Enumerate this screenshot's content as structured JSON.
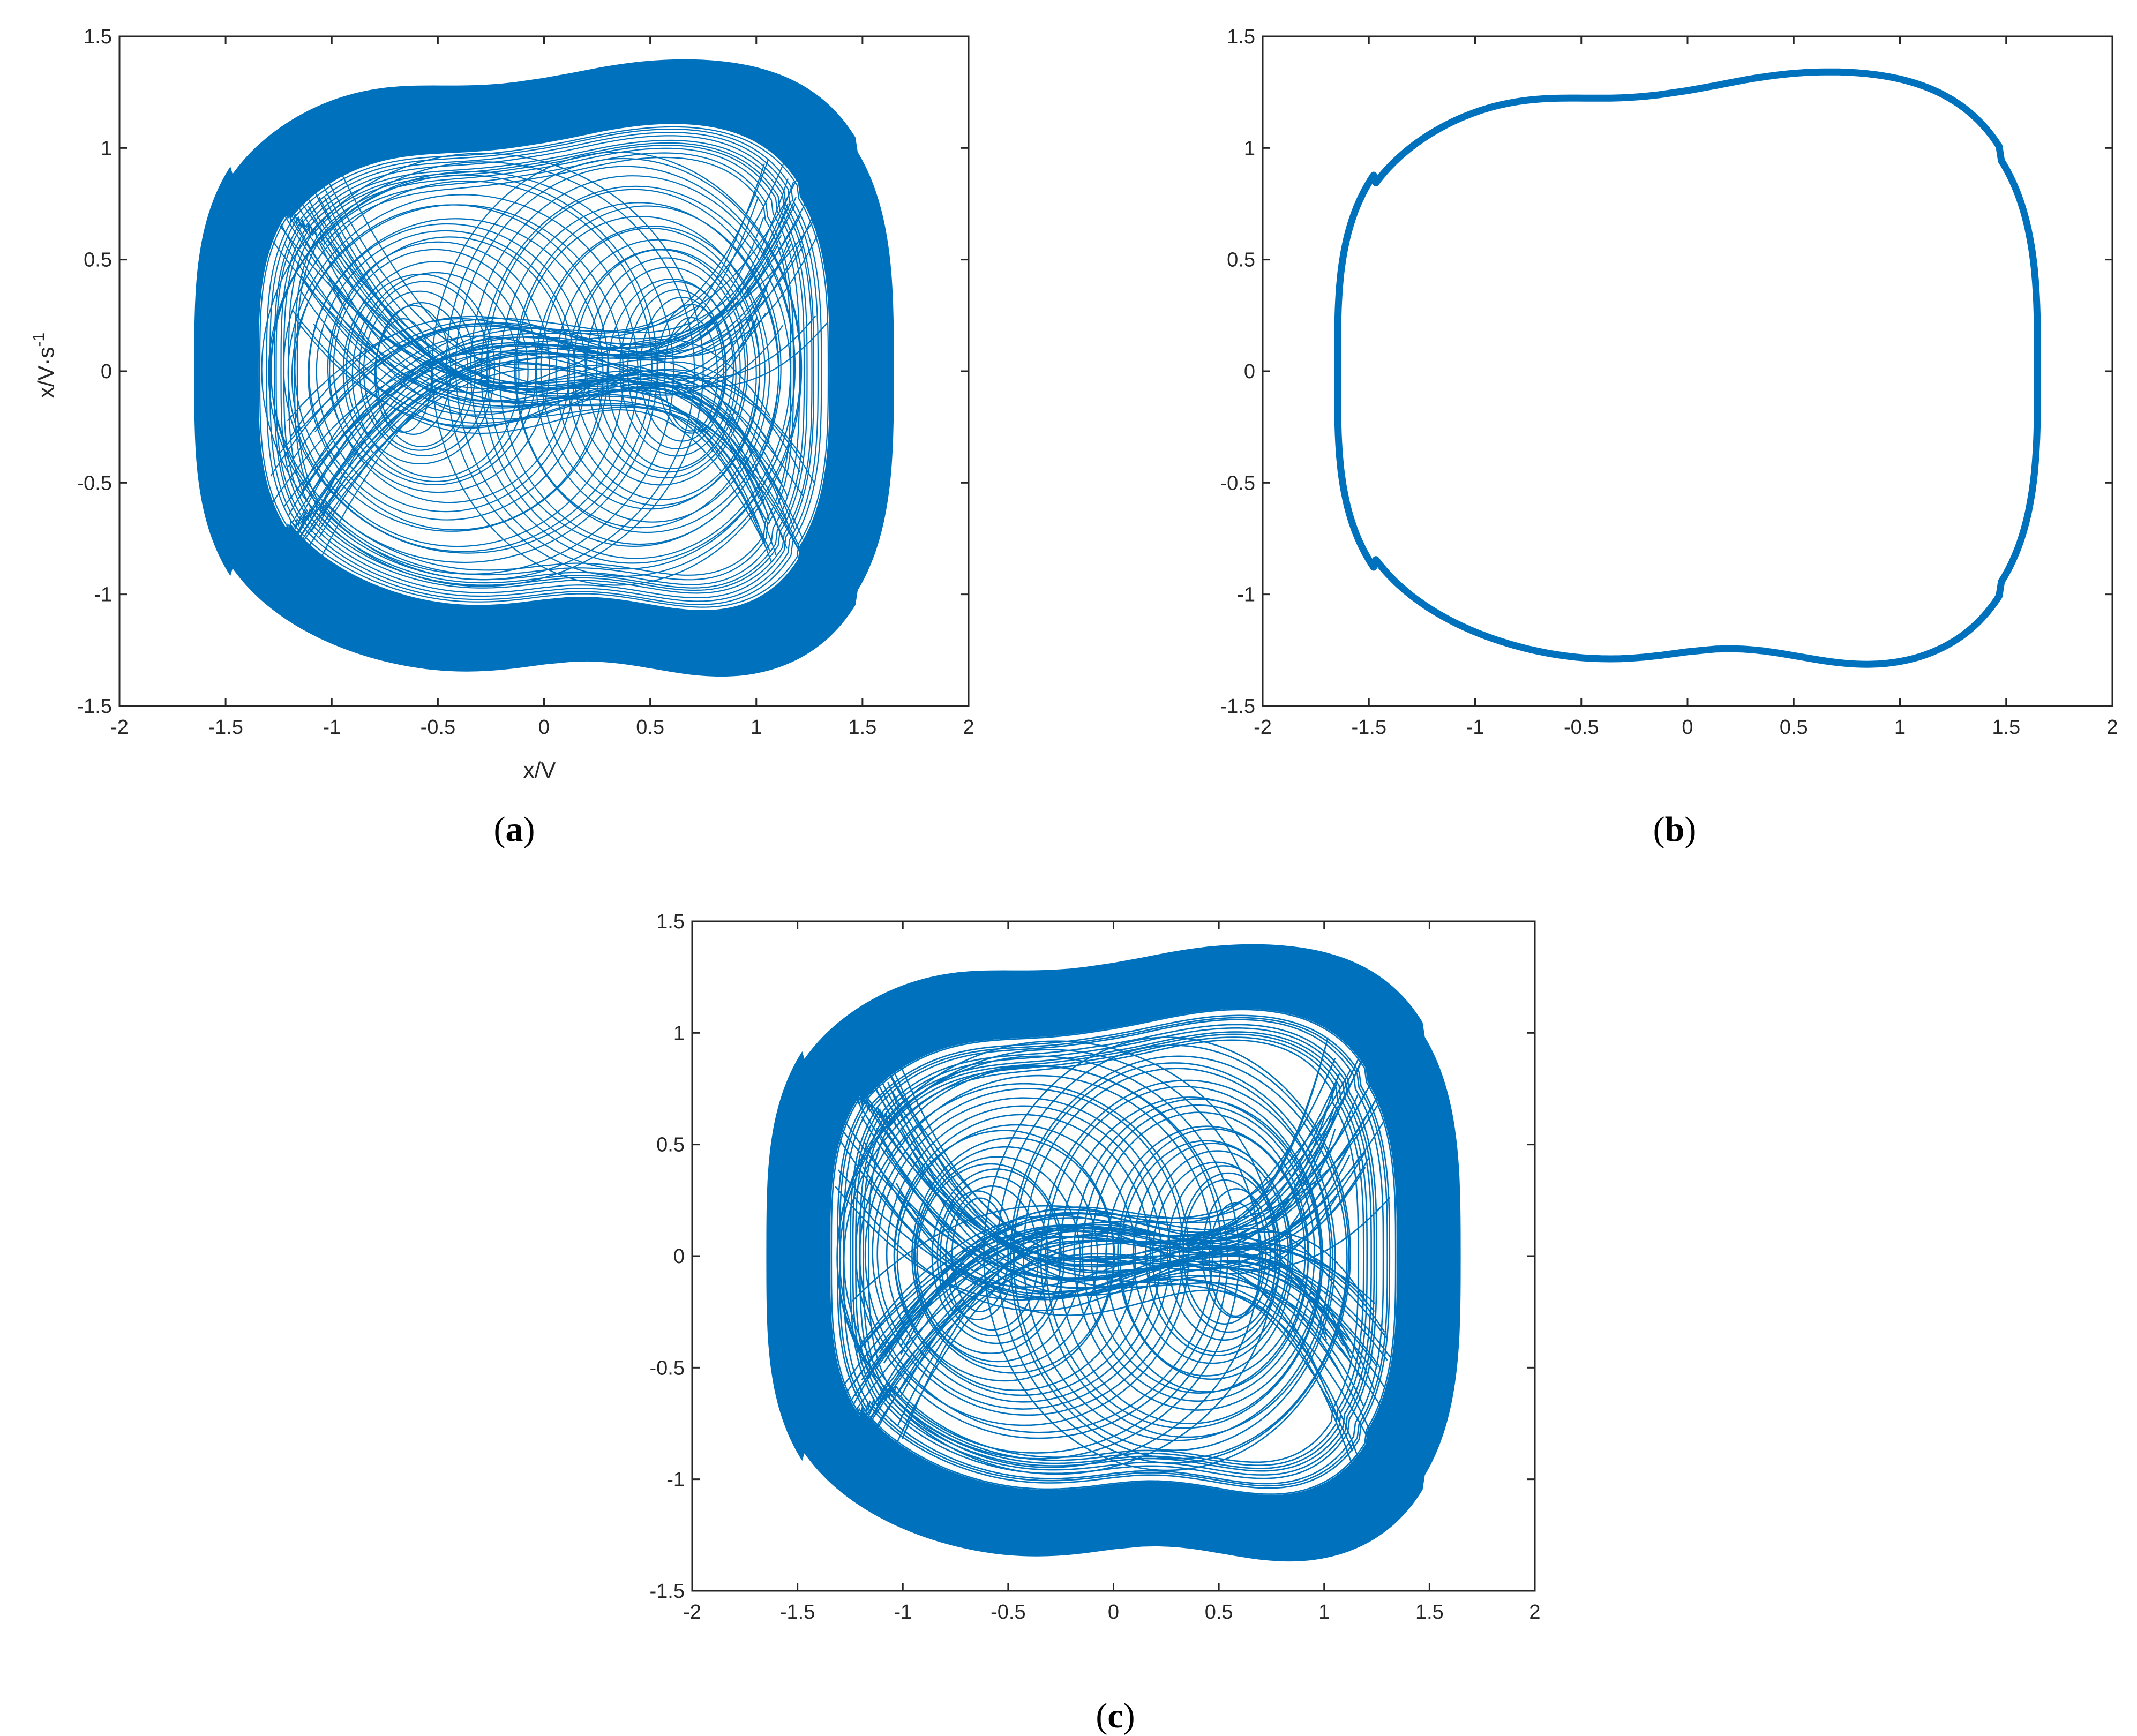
{
  "chart_data": [
    {
      "type": "line",
      "panel": "a",
      "caption": {
        "open": "(",
        "letter": "a",
        "close": ")"
      },
      "xlabel": "x/V",
      "ylabel": {
        "base": "x/V·s",
        "superscript": "-1"
      },
      "xlim": [
        -2,
        2
      ],
      "ylim": [
        -1.5,
        1.5
      ],
      "xticks": [
        "-2",
        "-1.5",
        "-1",
        "-0.5",
        "0",
        "0.5",
        "1",
        "1.5",
        "2"
      ],
      "yticks": [
        "-1.5",
        "-1",
        "-0.5",
        "0",
        "0.5",
        "1",
        "1.5"
      ],
      "grid": false,
      "series": [
        {
          "color": "#0072BD",
          "behavior": "chaotic double-scroll attractor",
          "x_range": [
            -1.65,
            1.65
          ],
          "y_range": [
            -1.38,
            1.38
          ],
          "scroll_centers": [
            [
              -0.65,
              0.0
            ],
            [
              0.7,
              0.0
            ]
          ]
        }
      ]
    },
    {
      "type": "line",
      "panel": "b",
      "caption": {
        "open": "(",
        "letter": "b",
        "close": ")"
      },
      "xlabel": "",
      "ylabel": "",
      "xlim": [
        -2,
        2
      ],
      "ylim": [
        -1.5,
        1.5
      ],
      "xticks": [
        "-2",
        "-1.5",
        "-1",
        "-0.5",
        "0",
        "0.5",
        "1",
        "1.5",
        "2"
      ],
      "yticks": [
        "-1.5",
        "-1",
        "-0.5",
        "0",
        "0.5",
        "1",
        "1.5"
      ],
      "grid": false,
      "series": [
        {
          "color": "#0072BD",
          "behavior": "periodic limit cycle",
          "x_range": [
            -1.66,
            1.66
          ],
          "y_range": [
            -1.39,
            1.39
          ]
        }
      ]
    },
    {
      "type": "line",
      "panel": "c",
      "caption": {
        "open": "(",
        "letter": "c",
        "close": ")"
      },
      "xlabel": "",
      "ylabel": "",
      "xlim": [
        -2,
        2
      ],
      "ylim": [
        -1.5,
        1.5
      ],
      "xticks": [
        "-2",
        "-1.5",
        "-1",
        "-0.5",
        "0",
        "0.5",
        "1",
        "1.5",
        "2"
      ],
      "yticks": [
        "-1.5",
        "-1",
        "-0.5",
        "0",
        "0.5",
        "1",
        "1.5"
      ],
      "grid": false,
      "series": [
        {
          "color": "#0072BD",
          "behavior": "chaotic double-scroll attractor",
          "x_range": [
            -1.65,
            1.65
          ],
          "y_range": [
            -1.38,
            1.38
          ],
          "scroll_centers": [
            [
              -0.65,
              0.0
            ],
            [
              0.6,
              0.0
            ]
          ]
        }
      ]
    }
  ]
}
